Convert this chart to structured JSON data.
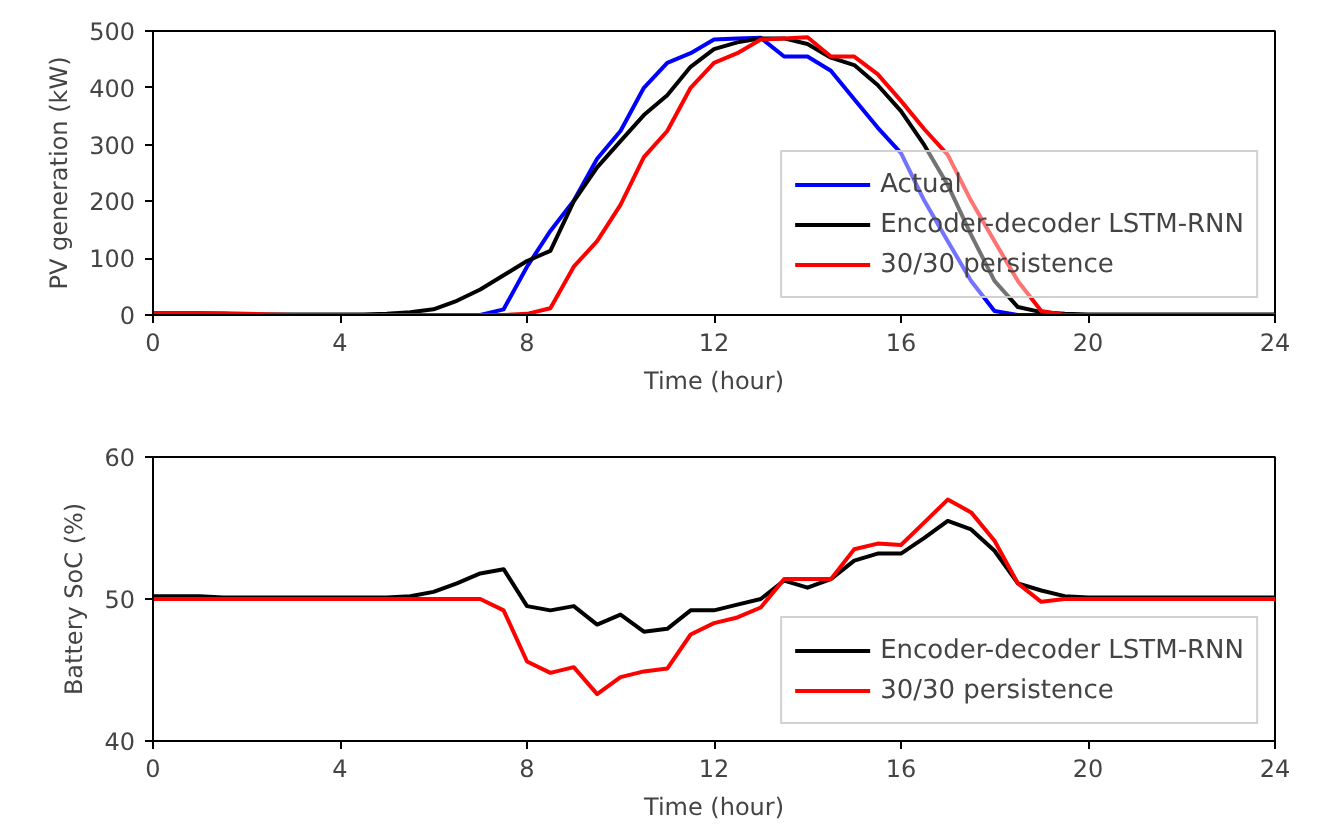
{
  "chart_data": [
    {
      "type": "line",
      "xlabel": "Time (hour)",
      "ylabel": "PV generation (kW)",
      "xlim": [
        0,
        24
      ],
      "ylim": [
        0,
        500
      ],
      "xticks": [
        0,
        4,
        8,
        12,
        16,
        20,
        24
      ],
      "yticks": [
        0,
        100,
        200,
        300,
        400,
        500
      ],
      "grid": false,
      "legend": "bottom right",
      "marker": "none",
      "line_style": "solid",
      "x": [
        0,
        0.5,
        1,
        1.5,
        2,
        2.5,
        3,
        3.5,
        4,
        4.5,
        5,
        5.5,
        6,
        6.5,
        7,
        7.5,
        8,
        8.5,
        9,
        9.5,
        10,
        10.5,
        11,
        11.5,
        12,
        12.5,
        13,
        13.5,
        14,
        14.5,
        15,
        15.5,
        16,
        16.5,
        17,
        17.5,
        18,
        18.5,
        19,
        19.5,
        20,
        20.5,
        21,
        21.5,
        22,
        22.5,
        23,
        23.5,
        24
      ],
      "series": [
        {
          "name": "Actual",
          "color": "#0000ff",
          "x": [
            7,
            7.5,
            8,
            8.5,
            9,
            9.5,
            10,
            10.5,
            11,
            11.5,
            12,
            12.5,
            13,
            13.5,
            14,
            14.5,
            15,
            15.5,
            16,
            16.5,
            17,
            17.5,
            18,
            18.5,
            19
          ],
          "values": [
            0,
            10,
            85,
            148,
            201,
            275,
            324,
            400,
            444,
            461,
            485,
            487,
            488,
            455,
            455,
            430,
            380,
            330,
            285,
            201,
            130,
            60,
            7,
            0,
            0
          ]
        },
        {
          "name": "Encoder-decoder LSTM-RNN",
          "color": "#000000",
          "values": [
            3,
            3,
            3,
            2,
            1,
            1,
            1,
            1,
            1,
            1,
            2,
            5,
            10,
            25,
            45,
            70,
            95,
            113,
            200,
            260,
            306,
            352,
            387,
            437,
            468,
            480,
            487,
            487,
            477,
            453,
            440,
            405,
            359,
            299,
            229,
            141,
            60,
            14,
            5,
            2,
            1,
            1,
            1,
            1,
            1,
            1,
            1,
            1,
            1
          ]
        },
        {
          "name": "30/30 persistence",
          "color": "#ff0000",
          "values": [
            3,
            3,
            3,
            3,
            2,
            1,
            0,
            0,
            0,
            0,
            0,
            0,
            0,
            0,
            0,
            0,
            2,
            12,
            85,
            130,
            194,
            278,
            324,
            400,
            444,
            461,
            485,
            487,
            489,
            455,
            455,
            424,
            377,
            327,
            282,
            201,
            130,
            60,
            7,
            0,
            0,
            0,
            0,
            0,
            0,
            0,
            0,
            0,
            0
          ]
        }
      ]
    },
    {
      "type": "line",
      "xlabel": "Time (hour)",
      "ylabel": "Battery SoC (%)",
      "xlim": [
        0,
        24
      ],
      "ylim": [
        40,
        60
      ],
      "xticks": [
        0,
        4,
        8,
        12,
        16,
        20,
        24
      ],
      "yticks": [
        40,
        50,
        60
      ],
      "grid": false,
      "legend": "bottom right",
      "marker": "none",
      "line_style": "solid",
      "x": [
        0,
        0.5,
        1,
        1.5,
        2,
        2.5,
        3,
        3.5,
        4,
        4.5,
        5,
        5.5,
        6,
        6.5,
        7,
        7.5,
        8,
        8.5,
        9,
        9.5,
        10,
        10.5,
        11,
        11.5,
        12,
        12.5,
        13,
        13.5,
        14,
        14.5,
        15,
        15.5,
        16,
        16.5,
        17,
        17.5,
        18,
        18.5,
        19,
        19.5,
        20,
        20.5,
        21,
        21.5,
        22,
        22.5,
        23,
        23.5,
        24
      ],
      "series": [
        {
          "name": "Encoder-decoder LSTM-RNN",
          "color": "#000000",
          "values": [
            50.2,
            50.2,
            50.2,
            50.1,
            50.1,
            50.1,
            50.1,
            50.1,
            50.1,
            50.1,
            50.1,
            50.2,
            50.5,
            51.1,
            51.8,
            52.1,
            49.5,
            49.2,
            49.5,
            48.2,
            48.9,
            47.7,
            47.9,
            49.2,
            49.2,
            49.6,
            50.0,
            51.3,
            50.8,
            51.4,
            52.7,
            53.2,
            53.2,
            54.3,
            55.5,
            54.9,
            53.4,
            51.1,
            50.6,
            50.2,
            50.1,
            50.1,
            50.1,
            50.1,
            50.1,
            50.1,
            50.1,
            50.1,
            50.1
          ]
        },
        {
          "name": "30/30 persistence",
          "color": "#ff0000",
          "values": [
            50.0,
            50.0,
            50.0,
            50.0,
            50.0,
            50.0,
            50.0,
            50.0,
            50.0,
            50.0,
            50.0,
            50.0,
            50.0,
            50.0,
            50.0,
            49.2,
            45.6,
            44.8,
            45.2,
            43.3,
            44.5,
            44.9,
            45.1,
            47.5,
            48.3,
            48.7,
            49.4,
            51.4,
            51.4,
            51.4,
            53.5,
            53.9,
            53.8,
            55.4,
            57.0,
            56.1,
            54.1,
            51.1,
            49.8,
            50.0,
            50.0,
            50.0,
            50.0,
            50.0,
            50.0,
            50.0,
            50.0,
            50.0,
            50.0
          ]
        }
      ]
    }
  ]
}
